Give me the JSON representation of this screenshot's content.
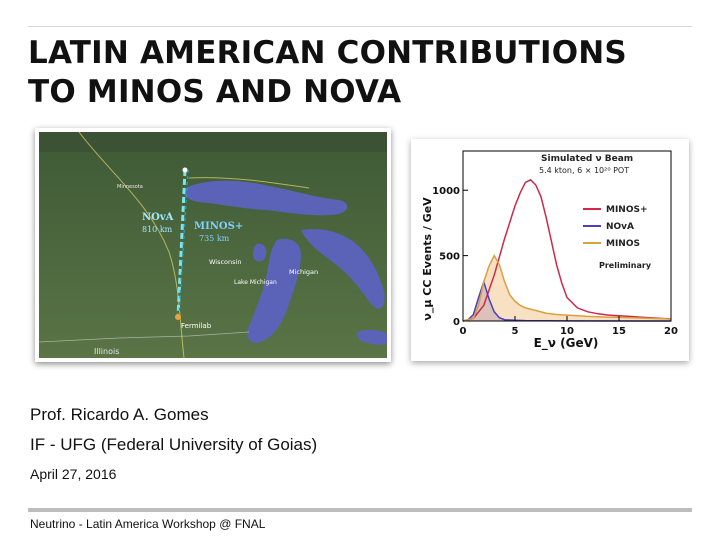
{
  "slide": {
    "title_line1": "LATIN AMERICAN CONTRIBUTIONS",
    "title_line2": "TO MINOS AND NOVA",
    "author": "Prof. Ricardo A. Gomes",
    "affiliation": "IF - UFG (Federal University of Goias)",
    "date": "April 27, 2016",
    "footer": "Neutrino - Latin America Workshop @ FNAL"
  },
  "map": {
    "nova_label": "NOvA",
    "nova_distance": "810 km",
    "minos_label": "MINOS+",
    "minos_distance": "735 km",
    "place_fermilab": "Fermilab",
    "place_wisconsin": "Wisconsin",
    "place_michigan": "Michigan",
    "place_lake_michigan": "Lake Michigan",
    "place_illinois": "Illinois",
    "place_minnesota": "Minnesota",
    "colors": {
      "land": "#4f6a3c",
      "lake": "#5b63b8",
      "nova_line": "#7fe3ea",
      "minos_line": "#1f9fb3"
    }
  },
  "chart_data": {
    "type": "line",
    "title": "Simulated ν Beam",
    "subtitle": "5.4 kton, 6 × 10²⁰ POT",
    "annotation": "Preliminary",
    "xlabel": "E_ν (GeV)",
    "ylabel": "ν_μ CC Events / GeV",
    "xlim": [
      0,
      20
    ],
    "ylim": [
      0,
      1300
    ],
    "xticks": [
      "0",
      "5",
      "10",
      "15",
      "20"
    ],
    "yticks": [
      "0",
      "500",
      "1000"
    ],
    "legend_position": "right",
    "series": [
      {
        "name": "MINOS+",
        "color": "#cc2a4a",
        "fill": "none",
        "x": [
          0,
          1,
          2,
          3,
          4,
          5,
          5.5,
          6,
          6.5,
          7,
          7.5,
          8,
          8.5,
          9,
          9.5,
          10,
          11,
          12,
          13,
          14,
          15,
          16,
          17,
          18,
          19,
          20
        ],
        "values": [
          0,
          20,
          120,
          350,
          630,
          880,
          980,
          1060,
          1080,
          1040,
          950,
          790,
          610,
          430,
          290,
          180,
          100,
          70,
          55,
          45,
          40,
          35,
          30,
          25,
          20,
          15
        ]
      },
      {
        "name": "NOvA",
        "color": "#4a3fbf",
        "fill": "#8a7fe0",
        "x": [
          0,
          0.5,
          1,
          1.5,
          2,
          2.5,
          3,
          3.5,
          4,
          5,
          6,
          8,
          10,
          20
        ],
        "values": [
          0,
          10,
          50,
          180,
          300,
          170,
          70,
          25,
          10,
          5,
          3,
          2,
          1,
          0
        ]
      },
      {
        "name": "MINOS",
        "color": "#d9a040",
        "fill": "#f3c98f",
        "x": [
          0,
          1,
          1.5,
          2,
          2.5,
          3,
          3.5,
          4,
          4.5,
          5,
          5.5,
          6,
          7,
          8,
          9,
          10,
          12,
          14,
          16,
          18,
          20
        ],
        "values": [
          0,
          20,
          120,
          300,
          420,
          500,
          430,
          300,
          200,
          150,
          120,
          100,
          80,
          60,
          50,
          45,
          35,
          30,
          25,
          20,
          15
        ]
      }
    ]
  }
}
